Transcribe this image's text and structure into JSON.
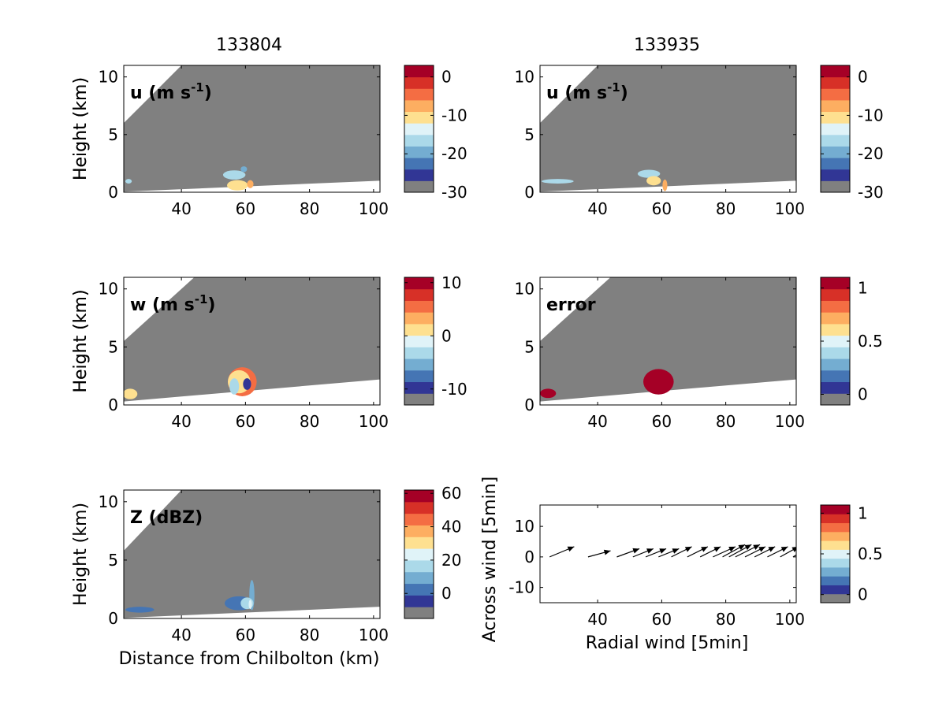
{
  "figure": {
    "column_titles": [
      "133804",
      "133935"
    ],
    "height_label": "Height (km)",
    "x_label_left": "Distance from Chilbolton (km)",
    "x_label_quiver": "Radial wind [5min]",
    "y_label_quiver": "Across wind [5min]",
    "units_minus_one": "-1"
  },
  "colors": {
    "background_gray": "#808080",
    "data_red": "#a50026",
    "palette": [
      "#808080",
      "#313695",
      "#4575b4",
      "#74add1",
      "#abd9e9",
      "#e0f3f8",
      "#fee090",
      "#fdae61",
      "#f46d43",
      "#d73027",
      "#a50026"
    ]
  },
  "chart_data": [
    {
      "type": "heatmap",
      "id": "u_133804",
      "panel_label_main": "u (m s",
      "panel_label_sup": "-1",
      "panel_label_close": ")",
      "xlim": [
        22,
        102
      ],
      "ylim": [
        0,
        11
      ],
      "xticks": [
        "40",
        "60",
        "80",
        "100"
      ],
      "xtick_values": [
        40,
        60,
        80,
        100
      ],
      "yticks": [
        "0",
        "5",
        "10"
      ],
      "ytick_values": [
        0,
        5,
        10
      ],
      "beam_upper_km": [
        [
          22,
          6.0
        ],
        [
          40,
          11
        ]
      ],
      "beam_lower_km": [
        [
          22,
          0.05
        ],
        [
          102,
          1.0
        ]
      ],
      "colorbar": {
        "ticks": [
          "0",
          "-10",
          "-20",
          "-30"
        ],
        "tick_values": [
          0,
          -10,
          -20,
          -30
        ],
        "range": [
          -30,
          3
        ]
      },
      "features": [
        {
          "x": 23.5,
          "y": 0.95,
          "w": 2.0,
          "h": 0.4,
          "color_index": 4
        },
        {
          "x": 56.5,
          "y": 1.5,
          "w": 7.0,
          "h": 0.8,
          "color_index": 4
        },
        {
          "x": 59.5,
          "y": 2.0,
          "w": 2.0,
          "h": 0.5,
          "color_index": 3
        },
        {
          "x": 57.5,
          "y": 0.6,
          "w": 6.5,
          "h": 0.9,
          "color_index": 6
        },
        {
          "x": 61.5,
          "y": 0.7,
          "w": 2.0,
          "h": 0.7,
          "color_index": 7
        }
      ]
    },
    {
      "type": "heatmap",
      "id": "u_133935",
      "panel_label_main": "u (m s",
      "panel_label_sup": "-1",
      "panel_label_close": ")",
      "xlim": [
        22,
        102
      ],
      "ylim": [
        0,
        11
      ],
      "xticks": [
        "40",
        "60",
        "80",
        "100"
      ],
      "xtick_values": [
        40,
        60,
        80,
        100
      ],
      "yticks": [
        "0",
        "5",
        "10"
      ],
      "ytick_values": [
        0,
        5,
        10
      ],
      "beam_upper_km": [
        [
          22,
          6.0
        ],
        [
          40,
          11
        ]
      ],
      "beam_lower_km": [
        [
          22,
          0.05
        ],
        [
          102,
          1.0
        ]
      ],
      "colorbar": {
        "ticks": [
          "0",
          "-10",
          "-20",
          "-30"
        ],
        "tick_values": [
          0,
          -10,
          -20,
          -30
        ],
        "range": [
          -30,
          3
        ]
      },
      "features": [
        {
          "x": 27.5,
          "y": 0.95,
          "w": 10.0,
          "h": 0.4,
          "color_index": 4
        },
        {
          "x": 56.0,
          "y": 1.6,
          "w": 7.0,
          "h": 0.7,
          "color_index": 4
        },
        {
          "x": 57.5,
          "y": 1.0,
          "w": 4.5,
          "h": 0.8,
          "color_index": 6
        },
        {
          "x": 61.0,
          "y": 0.6,
          "w": 1.5,
          "h": 1.0,
          "color_index": 7
        }
      ]
    },
    {
      "type": "heatmap",
      "id": "w_133804",
      "panel_label_main": "w (m s",
      "panel_label_sup": "-1",
      "panel_label_close": ")",
      "xlim": [
        22,
        102
      ],
      "ylim": [
        0,
        11
      ],
      "xticks": [
        "40",
        "60",
        "80",
        "100"
      ],
      "xtick_values": [
        40,
        60,
        80,
        100
      ],
      "yticks": [
        "0",
        "5",
        "10"
      ],
      "ytick_values": [
        0,
        5,
        10
      ],
      "beam_upper_km": [
        [
          22,
          5.5
        ],
        [
          44,
          11
        ]
      ],
      "beam_lower_km": [
        [
          22,
          0.3
        ],
        [
          102,
          2.2
        ]
      ],
      "colorbar": {
        "ticks": [
          "10",
          "0",
          "-10"
        ],
        "tick_values": [
          10,
          0,
          -10
        ],
        "range": [
          -13,
          11
        ]
      },
      "features": [
        {
          "x": 24.0,
          "y": 0.95,
          "w": 4.5,
          "h": 0.9,
          "color_index": 6
        },
        {
          "x": 59.0,
          "y": 2.0,
          "w": 9.0,
          "h": 2.5,
          "color_index": 8
        },
        {
          "x": 58.0,
          "y": 2.0,
          "w": 7.0,
          "h": 2.0,
          "color_index": 6
        },
        {
          "x": 56.5,
          "y": 1.6,
          "w": 3.0,
          "h": 1.4,
          "color_index": 4
        },
        {
          "x": 60.5,
          "y": 1.8,
          "w": 2.5,
          "h": 1.0,
          "color_index": 1
        }
      ]
    },
    {
      "type": "heatmap",
      "id": "error_133935",
      "panel_label_main": "error",
      "panel_label_sup": "",
      "panel_label_close": "",
      "xlim": [
        22,
        102
      ],
      "ylim": [
        0,
        11
      ],
      "xticks": [
        "40",
        "60",
        "80",
        "100"
      ],
      "xtick_values": [
        40,
        60,
        80,
        100
      ],
      "yticks": [
        "0",
        "5",
        "10"
      ],
      "ytick_values": [
        0,
        5,
        10
      ],
      "beam_upper_km": [
        [
          22,
          5.5
        ],
        [
          44,
          11
        ]
      ],
      "beam_lower_km": [
        [
          22,
          0.3
        ],
        [
          102,
          2.2
        ]
      ],
      "colorbar": {
        "ticks": [
          "1",
          "0.5",
          "0"
        ],
        "tick_values": [
          1,
          0.5,
          0
        ],
        "range": [
          -0.1,
          1.1
        ]
      },
      "features": [
        {
          "x": 24.5,
          "y": 1.0,
          "w": 5.0,
          "h": 0.8,
          "color_index": 10
        },
        {
          "x": 59.0,
          "y": 2.0,
          "w": 9.5,
          "h": 2.2,
          "color_index": 10
        }
      ]
    },
    {
      "type": "heatmap",
      "id": "Z_133804",
      "panel_label_main": "Z (dBZ)",
      "panel_label_sup": "",
      "panel_label_close": "",
      "xlim": [
        22,
        102
      ],
      "ylim": [
        0,
        11
      ],
      "xticks": [
        "40",
        "60",
        "80",
        "100"
      ],
      "xtick_values": [
        40,
        60,
        80,
        100
      ],
      "yticks": [
        "0",
        "5",
        "10"
      ],
      "ytick_values": [
        0,
        5,
        10
      ],
      "beam_upper_km": [
        [
          22,
          5.8
        ],
        [
          40,
          11
        ]
      ],
      "beam_lower_km": [
        [
          22,
          0.05
        ],
        [
          102,
          1.0
        ]
      ],
      "colorbar": {
        "ticks": [
          "60",
          "40",
          "20",
          "0"
        ],
        "tick_values": [
          60,
          40,
          20,
          0
        ],
        "range": [
          -15,
          62
        ]
      },
      "features": [
        {
          "x": 27.0,
          "y": 0.75,
          "w": 9.0,
          "h": 0.5,
          "color_index": 2
        },
        {
          "x": 58.0,
          "y": 1.3,
          "w": 9.0,
          "h": 1.2,
          "color_index": 2
        },
        {
          "x": 62.0,
          "y": 2.0,
          "w": 1.6,
          "h": 2.6,
          "color_index": 3
        },
        {
          "x": 60.5,
          "y": 1.3,
          "w": 4.0,
          "h": 1.0,
          "color_index": 4
        },
        {
          "x": 61.5,
          "y": 1.2,
          "w": 1.0,
          "h": 0.8,
          "color_index": 5
        }
      ]
    },
    {
      "type": "quiver",
      "id": "wind_133935",
      "xlim": [
        22,
        102
      ],
      "ylim": [
        -15,
        17
      ],
      "xticks": [
        "40",
        "60",
        "80",
        "100"
      ],
      "xtick_values": [
        40,
        60,
        80,
        100
      ],
      "yticks": [
        "10",
        "0",
        "-10"
      ],
      "ytick_values": [
        10,
        0,
        -10
      ],
      "colorbar": {
        "ticks": [
          "1",
          "0.5",
          "0"
        ],
        "tick_values": [
          1,
          0.5,
          0
        ],
        "range": [
          -0.1,
          1.1
        ]
      },
      "arrows": [
        {
          "x": 25,
          "y": 0,
          "u": 6.0,
          "v": 2.5
        },
        {
          "x": 37,
          "y": 0,
          "u": 5.5,
          "v": 1.5
        },
        {
          "x": 46,
          "y": 0,
          "u": 5.5,
          "v": 2.0
        },
        {
          "x": 51,
          "y": 0,
          "u": 5.0,
          "v": 2.0
        },
        {
          "x": 55,
          "y": 0,
          "u": 5.0,
          "v": 2.0
        },
        {
          "x": 59,
          "y": 0,
          "u": 5.0,
          "v": 2.0
        },
        {
          "x": 63,
          "y": 0,
          "u": 5.0,
          "v": 2.5
        },
        {
          "x": 68,
          "y": 0,
          "u": 5.0,
          "v": 2.5
        },
        {
          "x": 72,
          "y": 0,
          "u": 5.0,
          "v": 2.5
        },
        {
          "x": 76,
          "y": 0,
          "u": 5.5,
          "v": 2.5
        },
        {
          "x": 79,
          "y": 0,
          "u": 5.5,
          "v": 3.0
        },
        {
          "x": 81,
          "y": 0,
          "u": 5.5,
          "v": 3.0
        },
        {
          "x": 83,
          "y": 0,
          "u": 6.0,
          "v": 3.0
        },
        {
          "x": 86,
          "y": 0,
          "u": 5.0,
          "v": 2.5
        },
        {
          "x": 89,
          "y": 0,
          "u": 5.0,
          "v": 2.5
        },
        {
          "x": 93,
          "y": 0,
          "u": 5.0,
          "v": 2.5
        },
        {
          "x": 97,
          "y": 0,
          "u": 4.5,
          "v": 2.5
        },
        {
          "x": 101,
          "y": 0,
          "u": 2.5,
          "v": 1.5
        }
      ]
    }
  ]
}
